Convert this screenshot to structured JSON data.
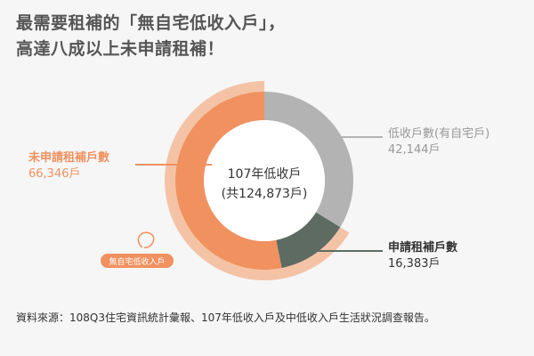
{
  "title_lines": [
    "最需要租補的「無自宅低收入戶」，",
    "高達八成以上未申請租補！"
  ],
  "source": "資料來源：108Q3住宅資訊統計彙報、107年低收入戶及中低收入戶生活狀況調查報告。",
  "colors": {
    "orange": "#f0915f",
    "orange_light": "#f4c3a6",
    "gray": "#b3b3b3",
    "dark_green": "#5e6b62",
    "text_gray": "#999999",
    "text_dark": "#333333"
  },
  "chart_data": {
    "type": "pie",
    "title": "",
    "center_label": [
      "107年低收戶",
      "(共124,873戶)"
    ],
    "total": 124873,
    "slices": [
      {
        "label": "低收戶數(有自宅戶)",
        "value": 42144,
        "value_label": "42,144戶",
        "color": "#b3b3b3"
      },
      {
        "label": "申請租補戶數",
        "value": 16383,
        "value_label": "16,383戶",
        "color": "#5e6b62"
      },
      {
        "label": "未申請租補戶數",
        "value": 66346,
        "value_label": "66,346戶",
        "color": "#f0915f"
      }
    ],
    "outer_group": {
      "label": "無自宅低收入戶",
      "value": 82729,
      "color": "#f4c3a6"
    }
  }
}
